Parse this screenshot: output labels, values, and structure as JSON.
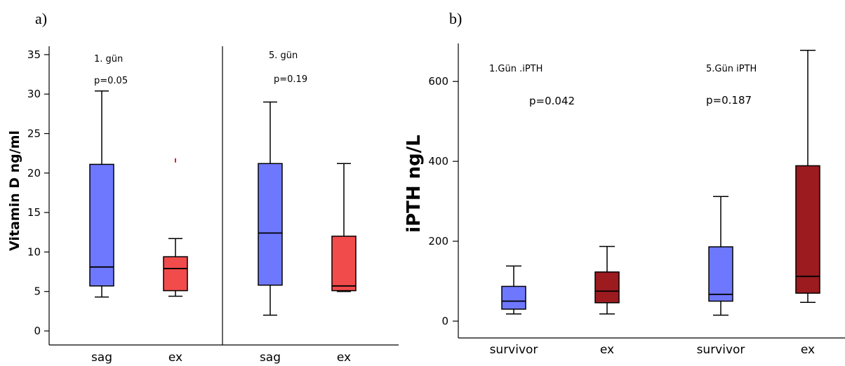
{
  "panel_labels": [
    "a)",
    "b)"
  ],
  "colors": {
    "blue": "#6e78ff",
    "red": "#f24b4b",
    "darkred": "#9b1b1f",
    "outlier": "#e02020",
    "axis": "#000000"
  },
  "chart_data": [
    {
      "type": "box",
      "panel": "a)",
      "ylabel": "Vitamin D ng/ml",
      "xlabel": "",
      "ylim": [
        -1.5,
        36
      ],
      "yticks": [
        0,
        5,
        10,
        15,
        20,
        25,
        30,
        35
      ],
      "categories": [
        "sag",
        "ex",
        "sag",
        "ex"
      ],
      "groups": [
        {
          "title": "1. gün",
          "pvalue": "p=0.05"
        },
        {
          "title": "5. gün",
          "pvalue": "p=0.19"
        }
      ],
      "boxes": [
        {
          "category": "sag",
          "group": "1. gün",
          "min": 4.3,
          "q1": 5.7,
          "median": 8.1,
          "q3": 21.1,
          "max": 30.4,
          "color": "blue"
        },
        {
          "category": "ex",
          "group": "1. gün",
          "min": 4.4,
          "q1": 5.1,
          "median": 7.9,
          "q3": 9.4,
          "max": 11.7,
          "color": "red",
          "outliers": [
            21.6
          ]
        },
        {
          "category": "sag",
          "group": "5. gün",
          "min": 2.0,
          "q1": 5.8,
          "median": 12.4,
          "q3": 21.2,
          "max": 29.0,
          "color": "blue"
        },
        {
          "category": "ex",
          "group": "5. gün",
          "min": 5.0,
          "q1": 5.1,
          "median": 5.7,
          "q3": 12.0,
          "max": 21.2,
          "color": "red"
        }
      ]
    },
    {
      "type": "box",
      "panel": "b)",
      "ylabel": "iPTH ng/L",
      "xlabel": "",
      "ylim": [
        -30,
        700
      ],
      "yticks": [
        0,
        200,
        400,
        600
      ],
      "categories": [
        "survivor",
        "ex",
        "survivor",
        "ex"
      ],
      "groups": [
        {
          "title": "1.Gün .iPTH",
          "pvalue": "p=0.042"
        },
        {
          "title": "5.Gün iPTH",
          "pvalue": "p=0.187"
        }
      ],
      "boxes": [
        {
          "category": "survivor",
          "group": "1.Gün .iPTH",
          "min": 18,
          "q1": 30,
          "median": 50,
          "q3": 87,
          "max": 138,
          "color": "blue"
        },
        {
          "category": "ex",
          "group": "1.Gün .iPTH",
          "min": 18,
          "q1": 46,
          "median": 75,
          "q3": 123,
          "max": 187,
          "color": "darkred"
        },
        {
          "category": "survivor",
          "group": "5.Gün iPTH",
          "min": 15,
          "q1": 50,
          "median": 67,
          "q3": 186,
          "max": 312,
          "color": "blue"
        },
        {
          "category": "ex",
          "group": "5.Gün iPTH",
          "min": 47,
          "q1": 70,
          "median": 112,
          "q3": 389,
          "max": 678,
          "color": "darkred"
        }
      ]
    }
  ]
}
